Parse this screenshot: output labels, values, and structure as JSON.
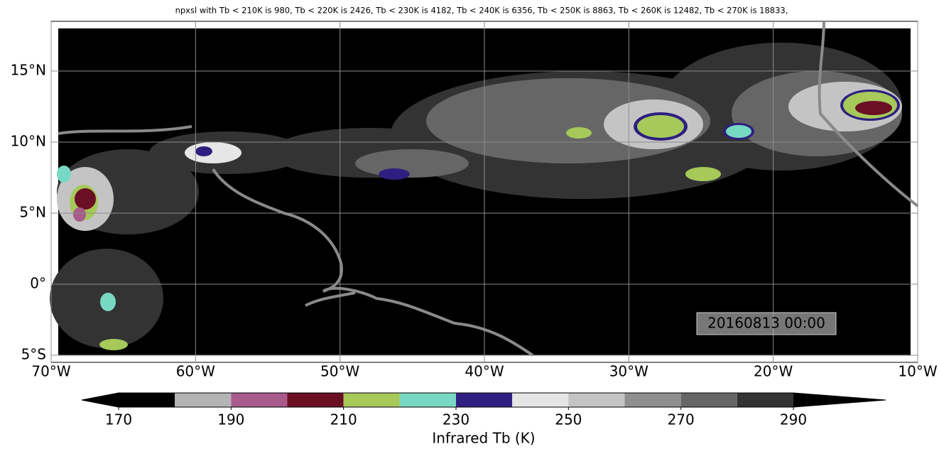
{
  "title": "npxsl with Tb < 210K is 980,  Tb < 220K is 2426,  Tb < 230K is 4182,  Tb < 240K is 6356,  Tb < 250K is 8863,  Tb < 260K is 12482,  Tb < 270K is 18833,",
  "map": {
    "xlim": [
      -70,
      -10
    ],
    "ylim": [
      -5.5,
      18.5
    ],
    "xticks": [
      {
        "value": -70,
        "label": "70°W"
      },
      {
        "value": -60,
        "label": "60°W"
      },
      {
        "value": -50,
        "label": "50°W"
      },
      {
        "value": -40,
        "label": "40°W"
      },
      {
        "value": -30,
        "label": "30°W"
      },
      {
        "value": -20,
        "label": "20°W"
      },
      {
        "value": -10,
        "label": "10°W"
      }
    ],
    "yticks": [
      {
        "value": -5,
        "label": "5°S"
      },
      {
        "value": 0,
        "label": "0°"
      },
      {
        "value": 5,
        "label": "5°N"
      },
      {
        "value": 10,
        "label": "10°N"
      },
      {
        "value": 15,
        "label": "15°N"
      }
    ],
    "timestamp": "20160813 00:00"
  },
  "colorbar": {
    "label": "Infrared Tb (K)",
    "boundaries": [
      170,
      180,
      190,
      200,
      210,
      220,
      230,
      240,
      250,
      260,
      270,
      280,
      290
    ],
    "colors": [
      "#000000",
      "#b4b4b4",
      "#a85a8a",
      "#6b0f24",
      "#a6c95a",
      "#78d9c3",
      "#2e1f80",
      "#e6e6e6",
      "#c4c4c4",
      "#8f8f8f",
      "#666666",
      "#333333"
    ],
    "under_color": "#000000",
    "over_color": "#000000",
    "ticks": [
      170,
      190,
      210,
      230,
      250,
      270,
      290
    ]
  }
}
